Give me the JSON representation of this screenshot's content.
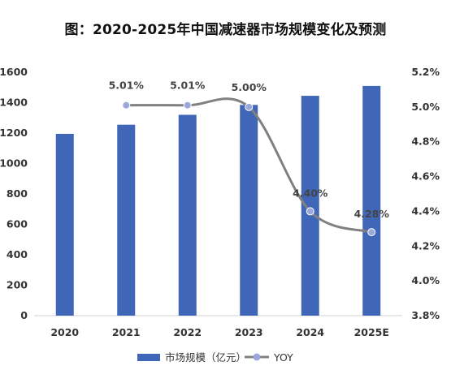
{
  "chart_data": {
    "type": "bar+line",
    "title": "图：2020-2025年中国减速器市场规模变化及预测",
    "categories": [
      "2020",
      "2021",
      "2022",
      "2023",
      "2024",
      "2025E"
    ],
    "series": [
      {
        "name": "市场规模（亿元）",
        "type": "bar",
        "axis": "left",
        "color": "#4066b8",
        "values": [
          1195,
          1255,
          1320,
          1385,
          1445,
          1510
        ]
      },
      {
        "name": "YOY",
        "type": "line",
        "axis": "right",
        "color": "#808080",
        "marker_color": "#9aa8dc",
        "values": [
          null,
          5.01,
          5.01,
          5.0,
          4.4,
          4.28
        ],
        "labels": [
          "",
          "5.01%",
          "5.01%",
          "5.00%",
          "4.40%",
          "4.28%"
        ]
      }
    ],
    "y_left": {
      "min": 0,
      "max": 1600,
      "step": 200,
      "ticks": [
        "0",
        "200",
        "400",
        "600",
        "800",
        "1000",
        "1200",
        "1400",
        "1600"
      ]
    },
    "y_right": {
      "min": 3.8,
      "max": 5.2,
      "step": 0.2,
      "ticks": [
        "3.8%",
        "4.0%",
        "4.2%",
        "4.4%",
        "4.6%",
        "4.8%",
        "5.0%",
        "5.2%"
      ]
    },
    "grid": false,
    "legend": "bottom"
  }
}
